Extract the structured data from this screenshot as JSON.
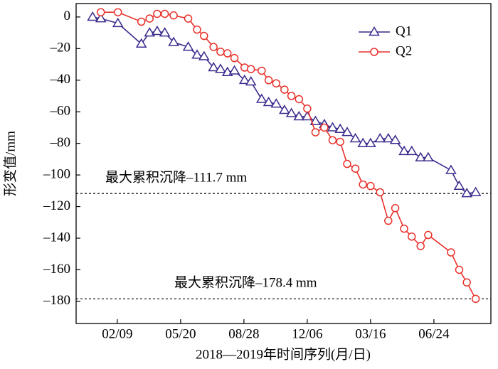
{
  "chart_data": {
    "type": "line",
    "xlabel": "2018—2019年时间序列(月/日)",
    "ylabel": "形变值/mm",
    "x": [
      "2018-01-01",
      "2018-01-14",
      "2018-02-10",
      "2018-03-19",
      "2018-04-01",
      "2018-04-13",
      "2018-04-25",
      "2018-05-09",
      "2018-06-01",
      "2018-06-15",
      "2018-06-26",
      "2018-07-11",
      "2018-07-22",
      "2018-08-02",
      "2018-08-13",
      "2018-08-29",
      "2018-09-08",
      "2018-09-25",
      "2018-10-06",
      "2018-10-18",
      "2018-10-31",
      "2018-11-11",
      "2018-11-23",
      "2018-12-06",
      "2018-12-19",
      "2019-01-02",
      "2019-01-15",
      "2019-01-27",
      "2019-02-07",
      "2019-02-20",
      "2019-03-04",
      "2019-03-16",
      "2019-03-31",
      "2019-04-13",
      "2019-04-24",
      "2019-05-08",
      "2019-05-20",
      "2019-06-03",
      "2019-06-15",
      "2019-07-21",
      "2019-08-03",
      "2019-08-15",
      "2019-08-29"
    ],
    "series": [
      {
        "name": "Q1",
        "color": "#3a2a8c",
        "marker": "triangle",
        "values": [
          0,
          -1,
          -4,
          -17,
          -10,
          -9,
          -10,
          -16,
          -19,
          -24,
          -25,
          -32,
          -33,
          -35,
          -34,
          -40,
          -41,
          -52,
          -54,
          -55,
          -59,
          -61,
          -63,
          -63,
          -66,
          -68,
          -70,
          -71,
          -73,
          -77,
          -80,
          -80,
          -77,
          -77,
          -78,
          -85,
          -85,
          -89,
          -89,
          -97,
          -107,
          -111.7,
          -111
        ]
      },
      {
        "name": "Q2",
        "color": "#e8302a",
        "marker": "circle",
        "values": [
          null,
          3,
          3,
          -3,
          -1,
          2,
          2,
          1,
          -1,
          -8,
          -12,
          -19,
          -22,
          -23,
          -26,
          -32,
          -33,
          -34,
          -40,
          -42,
          -46,
          -50,
          -52,
          -58,
          -73,
          -70,
          -78,
          -79,
          -93,
          -96,
          -106,
          -107,
          -111,
          -129,
          -121,
          -134,
          -139,
          -145,
          -138,
          -149,
          -160,
          -168,
          -178.4
        ]
      }
    ],
    "xlim": [
      "2017-12-06",
      "2019-09-22"
    ],
    "xticks": [
      {
        "value": "2018-02-09",
        "label": "02/09"
      },
      {
        "value": "2018-05-20",
        "label": "05/20"
      },
      {
        "value": "2018-08-28",
        "label": "08/28"
      },
      {
        "value": "2018-12-06",
        "label": "12/06"
      },
      {
        "value": "2019-03-16",
        "label": "03/16"
      },
      {
        "value": "2019-06-24",
        "label": "06/24"
      }
    ],
    "ylim": [
      -194,
      8.5
    ],
    "yticks": [
      0,
      {
        "value": -20,
        "label": "–20"
      },
      {
        "value": -40,
        "label": "–40"
      },
      {
        "value": -60,
        "label": "–60"
      },
      {
        "value": -80,
        "label": "–80"
      },
      {
        "value": -100,
        "label": "–100"
      },
      {
        "value": -120,
        "label": "–120"
      },
      {
        "value": -140,
        "label": "–140"
      },
      {
        "value": -160,
        "label": "–160"
      },
      {
        "value": -180,
        "label": "–180"
      }
    ],
    "legend": "upper right",
    "annotations": [
      {
        "text": "最大累积沉降–111.7 mm",
        "value": -111.7
      },
      {
        "text": "最大累积沉降–178.4 mm",
        "value": -178.4
      }
    ]
  }
}
